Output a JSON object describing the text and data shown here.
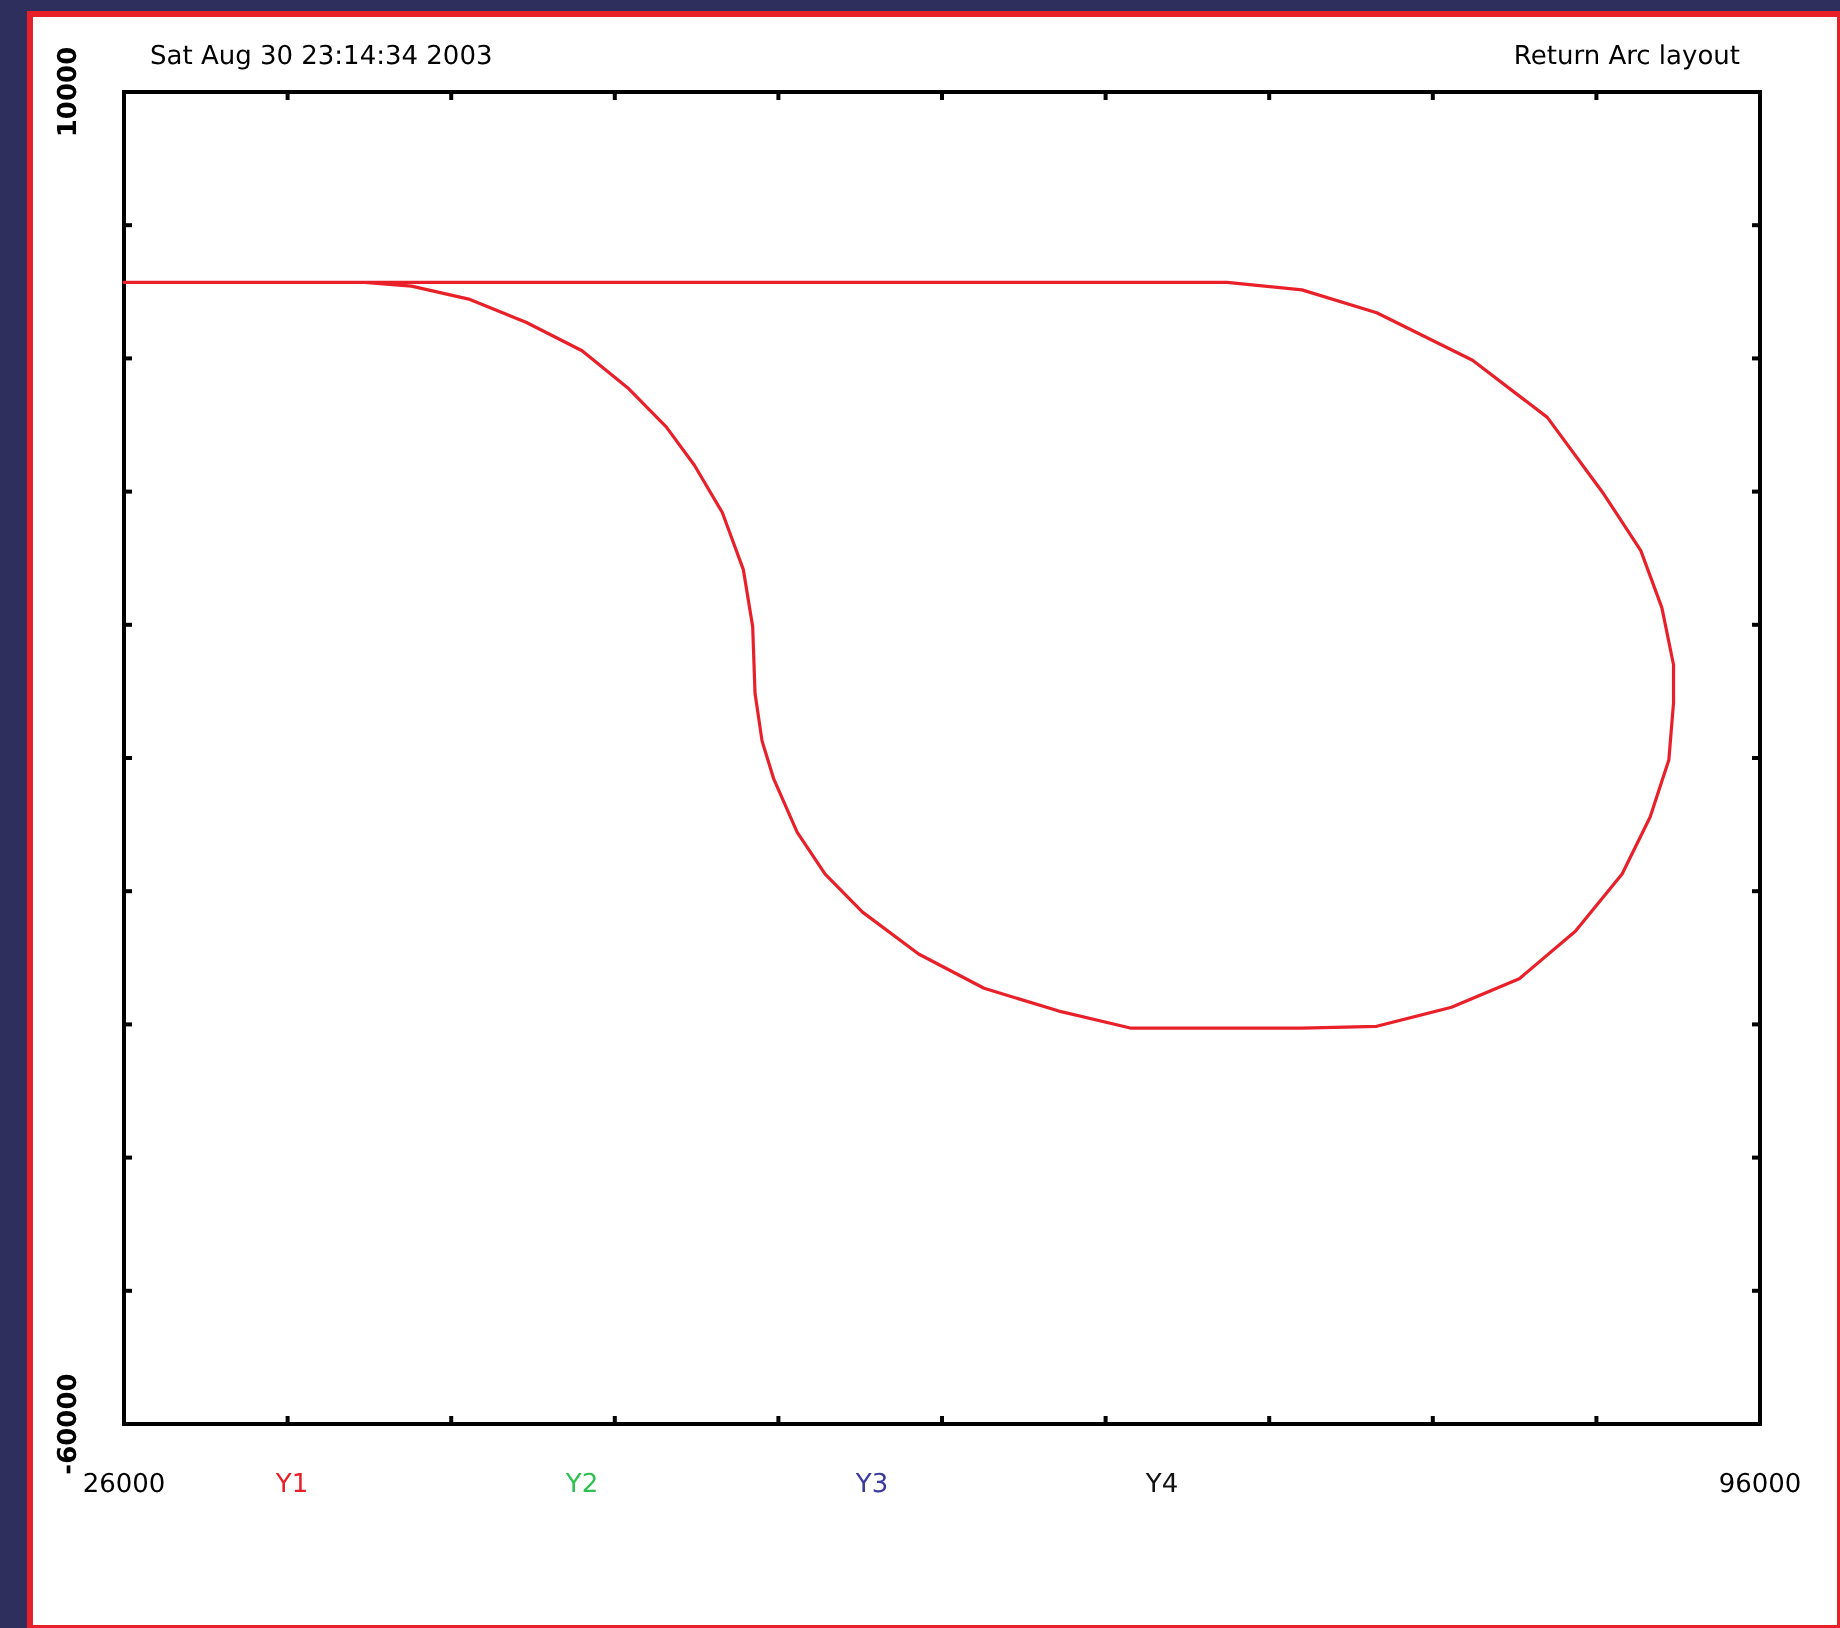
{
  "chart_data": {
    "type": "line",
    "title": "Return Arc layout",
    "annotations": [
      "Sat Aug 30 23:14:34 2003"
    ],
    "xlim": [
      26000,
      96000
    ],
    "xticks": [
      26000,
      {
        "value": 33000,
        "label": null
      },
      {
        "value": 40000,
        "label": null
      },
      {
        "value": 47000,
        "label": null
      },
      {
        "value": 54000,
        "label": null
      },
      {
        "value": 61000,
        "label": null
      },
      {
        "value": 68000,
        "label": null
      },
      {
        "value": 75000,
        "label": null
      },
      {
        "value": 82000,
        "label": null
      },
      {
        "value": 89000,
        "label": null
      },
      96000
    ],
    "ylim": [
      -60000,
      10000
    ],
    "yticks": [
      -60000,
      {
        "value": -53000,
        "label": null
      },
      {
        "value": -46000,
        "label": null
      },
      {
        "value": -39000,
        "label": null
      },
      {
        "value": -32000,
        "label": null
      },
      {
        "value": -25000,
        "label": null
      },
      {
        "value": -18000,
        "label": null
      },
      {
        "value": -11000,
        "label": null
      },
      {
        "value": -4000,
        "label": null
      },
      {
        "value": 3000,
        "label": null
      },
      10000
    ],
    "legend": "bottom",
    "series": [
      {
        "name": "Y1",
        "color": "#e8202a",
        "x": [
          26000,
          73200,
          76400,
          79600,
          83700,
          86900,
          89300,
          90900,
          91800,
          92300,
          92300,
          92100,
          91300,
          90100,
          88100,
          85700,
          82800,
          79600,
          76400,
          69100,
          66000,
          62800,
          60000,
          57600,
          56000,
          54800,
          53800,
          53300,
          53000,
          52900,
          52500,
          51600,
          50400,
          49200,
          47600,
          45600,
          43200,
          40800,
          38300,
          36300,
          31100
        ],
        "values": [
          0,
          0,
          -400,
          -1600,
          -4100,
          -7100,
          -11100,
          -14100,
          -17100,
          -20100,
          -22100,
          -25100,
          -28100,
          -31100,
          -34100,
          -36600,
          -38100,
          -39100,
          -39200,
          -39200,
          -38300,
          -37100,
          -35300,
          -33100,
          -31100,
          -28900,
          -26100,
          -24100,
          -21600,
          -18100,
          -15100,
          -12100,
          -9600,
          -7600,
          -5600,
          -3600,
          -2100,
          -900,
          -200,
          0,
          0
        ]
      },
      {
        "name": "Y2",
        "color": "#2ec050"
      },
      {
        "name": "Y3",
        "color": "#3a3aa0"
      },
      {
        "name": "Y4",
        "color": "#111111"
      }
    ]
  }
}
